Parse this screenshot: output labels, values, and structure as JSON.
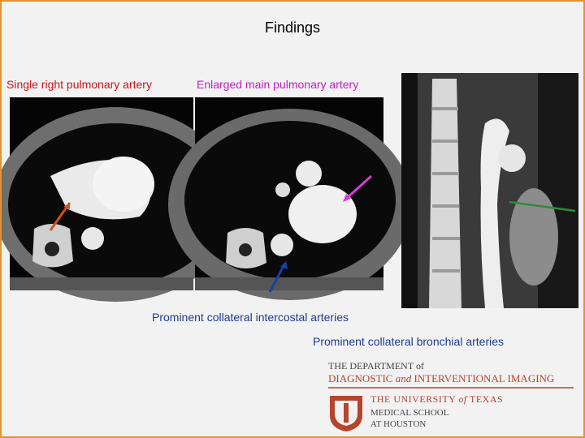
{
  "slide": {
    "title": "Findings",
    "labels": {
      "single_right_pa": "Single right pulmonary artery",
      "enlarged_main_pa": "Enlarged main pulmonary artery",
      "intercostal": "Prominent collateral intercostal arteries",
      "bronchial": "Prominent collateral bronchial arteries"
    },
    "logo": {
      "department": "THE DEPARTMENT of",
      "dept_name_1": "DIAGNOSTIC",
      "dept_name_and": "and",
      "dept_name_2": "INTERVENTIONAL IMAGING",
      "university_1": "THE UNIVERSITY",
      "university_of": "of",
      "university_2": "TEXAS",
      "school": "MEDICAL SCHOOL",
      "location": "AT HOUSTON"
    }
  }
}
